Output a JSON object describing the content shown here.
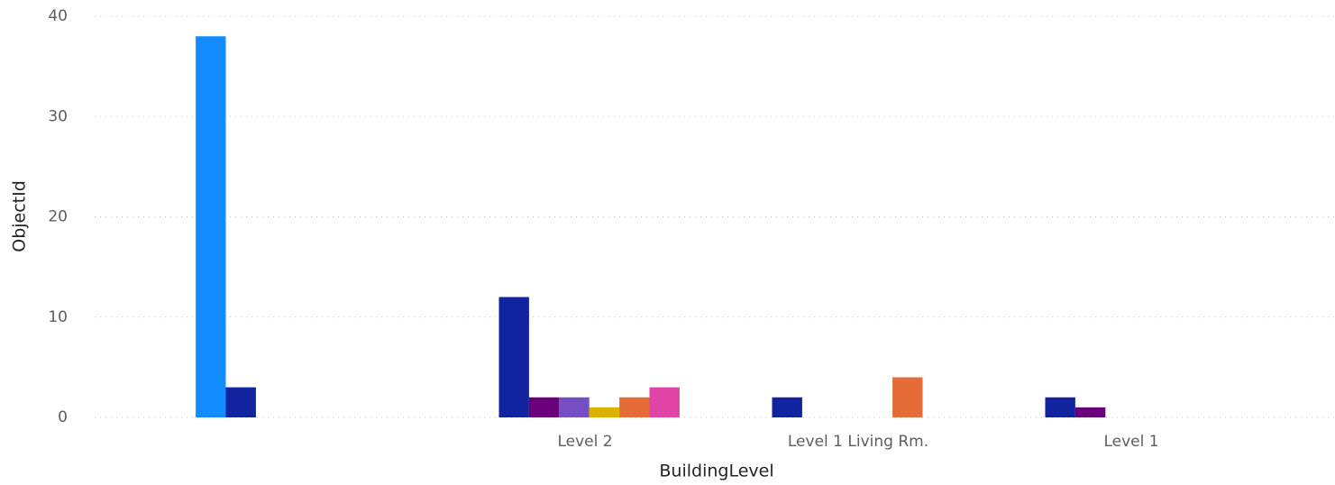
{
  "chart_data": {
    "type": "bar",
    "x_label": "BuildingLevel",
    "y_label": "ObjectId",
    "categories": [
      null,
      "Level 2",
      "Level 1 Living Rm.",
      "Level 1"
    ],
    "series": [
      {
        "color": "#118DFF",
        "values": [
          38,
          null,
          null,
          null
        ]
      },
      {
        "color": "#12239E",
        "values": [
          3,
          12,
          2,
          2
        ]
      },
      {
        "color": "#6B007B",
        "values": [
          null,
          2,
          null,
          1
        ]
      },
      {
        "color": "#744EC2",
        "values": [
          null,
          2,
          null,
          null
        ]
      },
      {
        "color": "#D9B300",
        "values": [
          null,
          1,
          null,
          null
        ]
      },
      {
        "color": "#E66C37",
        "values": [
          null,
          2,
          4,
          null
        ]
      },
      {
        "color": "#E044A7",
        "values": [
          null,
          3,
          null,
          null
        ]
      }
    ],
    "ylim": [
      0,
      40
    ],
    "yticks": [
      0,
      10,
      20,
      30,
      40
    ],
    "grid": true
  }
}
